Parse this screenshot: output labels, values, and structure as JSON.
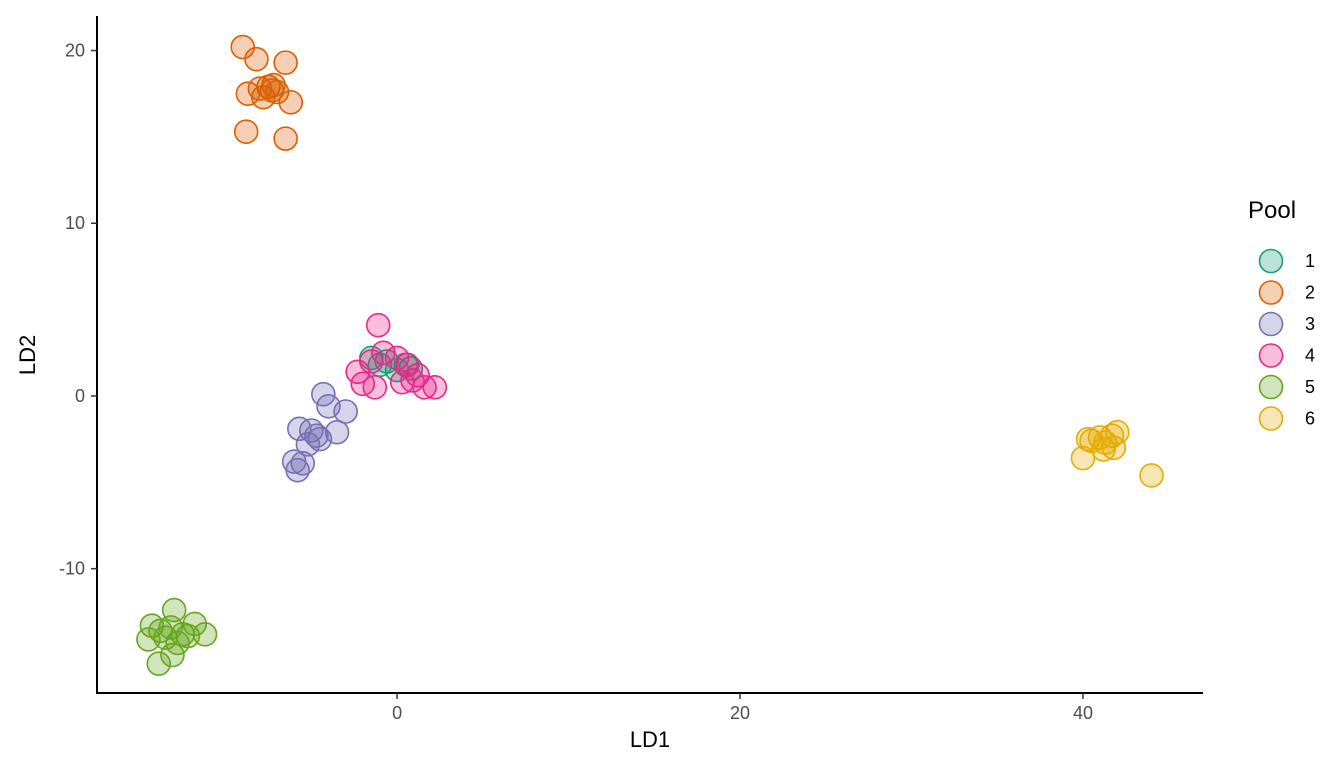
{
  "chart_data": {
    "type": "scatter",
    "title": "",
    "xlabel": "LD1",
    "ylabel": "LD2",
    "xlim": [
      -17.5,
      47
    ],
    "ylim": [
      -17.2,
      22
    ],
    "xticks": [
      0,
      20,
      40
    ],
    "yticks": [
      -10,
      0,
      10,
      20
    ],
    "grid": false,
    "legend": {
      "title": "Pool",
      "position": "right"
    },
    "series": [
      {
        "name": "1",
        "color": "#1b9e77",
        "x": [
          -1.5,
          -1.0,
          -0.6,
          0.0,
          0.5,
          0.8
        ],
        "y": [
          2.2,
          1.8,
          2.0,
          1.5,
          1.8,
          1.6
        ]
      },
      {
        "name": "2",
        "color": "#d95f02",
        "x": [
          -9.0,
          -8.2,
          -6.5,
          -8.7,
          -8.0,
          -7.5,
          -7.0,
          -7.8,
          -7.3,
          -7.2,
          -6.2,
          -8.8,
          -6.5
        ],
        "y": [
          20.2,
          19.5,
          19.3,
          17.5,
          17.8,
          17.9,
          17.6,
          17.3,
          17.7,
          18.0,
          17.0,
          15.3,
          14.9
        ]
      },
      {
        "name": "3",
        "color": "#7570b3",
        "x": [
          -4.3,
          -4.0,
          -3.0,
          -5.7,
          -5.0,
          -4.7,
          -4.5,
          -5.2,
          -3.5,
          -6.0,
          -5.5,
          -5.8
        ],
        "y": [
          0.1,
          -0.6,
          -0.9,
          -1.9,
          -2.0,
          -2.3,
          -2.5,
          -2.8,
          -2.1,
          -3.8,
          -3.9,
          -4.3
        ]
      },
      {
        "name": "4",
        "color": "#e7298a",
        "x": [
          -1.1,
          -2.3,
          -1.5,
          -0.8,
          0.0,
          0.6,
          1.2,
          -2.0,
          -1.3,
          0.3,
          0.9,
          1.6,
          2.2
        ],
        "y": [
          4.1,
          1.4,
          2.0,
          2.5,
          2.2,
          1.8,
          1.2,
          0.7,
          0.5,
          0.8,
          0.9,
          0.5,
          0.5
        ]
      },
      {
        "name": "5",
        "color": "#66a61e",
        "x": [
          -13.0,
          -14.3,
          -13.8,
          -13.2,
          -12.5,
          -11.8,
          -14.5,
          -13.5,
          -12.8,
          -12.2,
          -11.2,
          -13.1,
          -13.9
        ],
        "y": [
          -12.4,
          -13.3,
          -13.6,
          -13.4,
          -13.8,
          -13.2,
          -14.1,
          -14.0,
          -14.3,
          -13.9,
          -13.8,
          -15.0,
          -15.5
        ]
      },
      {
        "name": "6",
        "color": "#e6ab02",
        "x": [
          40.3,
          41.0,
          41.7,
          42.0,
          41.3,
          40.5,
          41.2,
          41.8,
          40.0,
          44.0
        ],
        "y": [
          -2.5,
          -2.4,
          -2.3,
          -2.1,
          -2.7,
          -2.6,
          -3.1,
          -3.0,
          -3.6,
          -4.6
        ]
      }
    ]
  }
}
